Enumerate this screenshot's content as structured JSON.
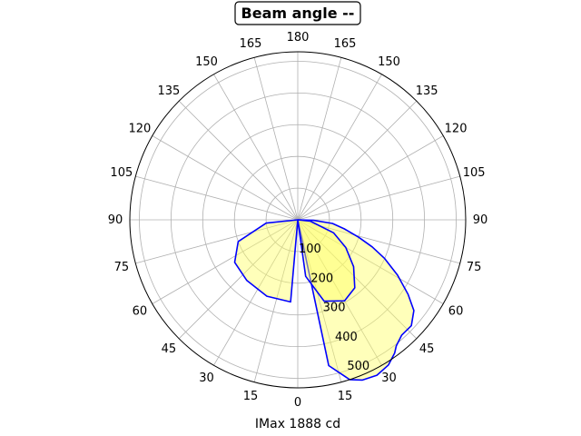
{
  "chart_data": {
    "type": "polar-line",
    "title": "Beam angle --",
    "xlabel": "IMax 1888 cd",
    "angle_ticks": [
      "0",
      "15",
      "30",
      "45",
      "60",
      "75",
      "90",
      "105",
      "120",
      "135",
      "150",
      "165",
      "180",
      "165",
      "150",
      "135",
      "120",
      "105",
      "90",
      "75",
      "60",
      "45",
      "30",
      "15"
    ],
    "radial_ticks": [
      100,
      200,
      300,
      400,
      500
    ],
    "rlim": [
      0,
      530
    ],
    "grid": true,
    "colors": {
      "line": "#0000ff",
      "fill": "#ffff66",
      "grid": "#b0b0b0"
    },
    "series": [
      {
        "points": [
          [
            0,
            0
          ],
          [
            12,
            470
          ],
          [
            18,
            530
          ],
          [
            22,
            545
          ],
          [
            27,
            550
          ],
          [
            32,
            540
          ],
          [
            36,
            520
          ],
          [
            38,
            505
          ],
          [
            42,
            490
          ],
          [
            47,
            490
          ],
          [
            52,
            465
          ],
          [
            56,
            420
          ],
          [
            61,
            360
          ],
          [
            66,
            300
          ],
          [
            70,
            250
          ],
          [
            74,
            200
          ],
          [
            79,
            150
          ],
          [
            84,
            110
          ],
          [
            88,
            50
          ],
          [
            90,
            0
          ]
        ]
      },
      {
        "points": [
          [
            0,
            0
          ],
          [
            -5,
            260
          ],
          [
            -22,
            260
          ],
          [
            -40,
            250
          ],
          [
            -56,
            240
          ],
          [
            -70,
            200
          ],
          [
            -84,
            100
          ],
          [
            -90,
            0
          ],
          [
            0,
            0
          ],
          [
            8,
            180
          ],
          [
            18,
            270
          ],
          [
            30,
            295
          ],
          [
            40,
            280
          ],
          [
            50,
            230
          ],
          [
            60,
            175
          ],
          [
            70,
            120
          ],
          [
            84,
            40
          ],
          [
            90,
            0
          ]
        ]
      }
    ]
  }
}
